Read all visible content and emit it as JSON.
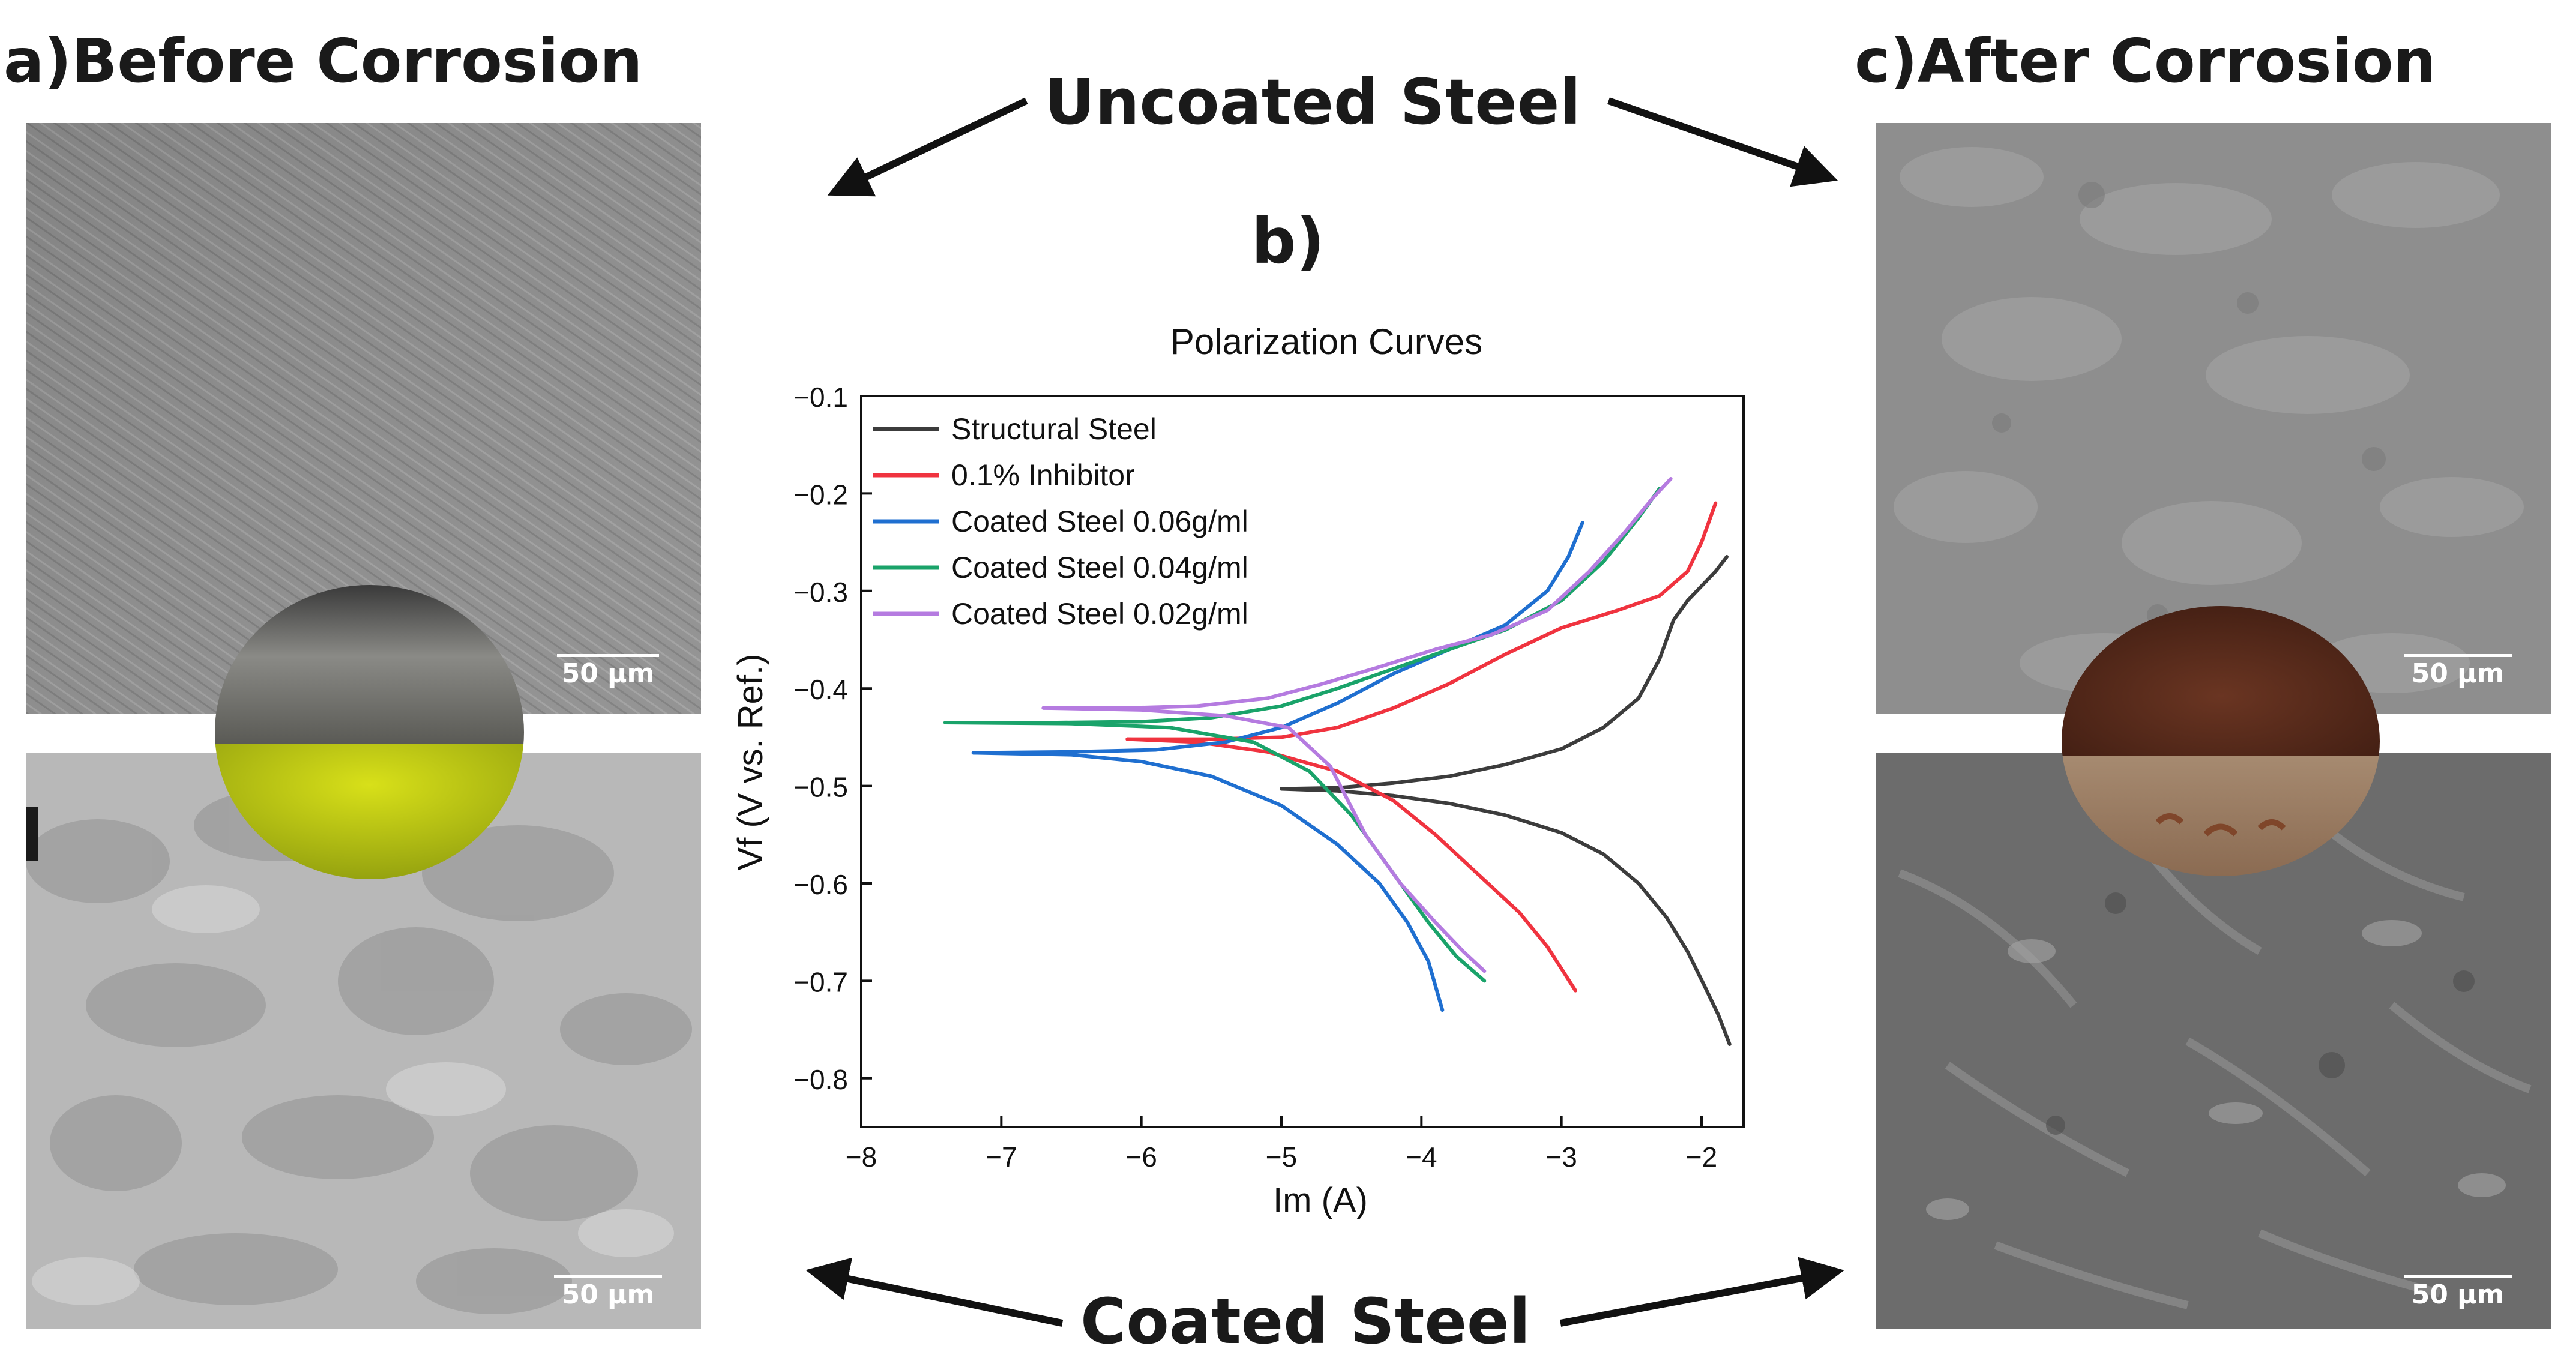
{
  "panels": {
    "a_label": "a)Before Corrosion",
    "b_label": "b)",
    "c_label": "c)After Corrosion"
  },
  "labels": {
    "uncoated": "Uncoated Steel",
    "coated": "Coated Steel"
  },
  "scale_bars": {
    "a_top": "50 µm",
    "a_bottom": "50 µm",
    "c_top": "50 µm",
    "c_bottom": "50 µm"
  },
  "colors": {
    "structural_steel": "#3c3c3c",
    "inhibitor": "#f0333f",
    "coated_006": "#1f6fd0",
    "coated_004": "#1aa36a",
    "coated_002": "#b57be0"
  },
  "chart_data": {
    "type": "line",
    "title": "Polarization Curves",
    "xlabel": "Im (A)",
    "ylabel": "Vf (V vs. Ref.)",
    "xlim": [
      -8,
      -1.7
    ],
    "ylim": [
      -0.85,
      -0.1
    ],
    "xticks": [
      "−8",
      "−7",
      "−6",
      "−5",
      "−4",
      "−3",
      "−2"
    ],
    "xtick_values": [
      -8,
      -7,
      -6,
      -5,
      -4,
      -3,
      -2
    ],
    "yticks": [
      "−0.1",
      "−0.2",
      "−0.3",
      "−0.4",
      "−0.5",
      "−0.6",
      "−0.7",
      "−0.8"
    ],
    "ytick_values": [
      -0.1,
      -0.2,
      -0.3,
      -0.4,
      -0.5,
      -0.6,
      -0.7,
      -0.8
    ],
    "legend_position": "top-left",
    "series": [
      {
        "name": "Structural Steel",
        "color": "#3c3c3c",
        "anodic": [
          [
            -5.0,
            -0.503
          ],
          [
            -4.6,
            -0.502
          ],
          [
            -4.2,
            -0.497
          ],
          [
            -3.8,
            -0.49
          ],
          [
            -3.4,
            -0.478
          ],
          [
            -3.0,
            -0.462
          ],
          [
            -2.7,
            -0.44
          ],
          [
            -2.45,
            -0.41
          ],
          [
            -2.3,
            -0.37
          ],
          [
            -2.2,
            -0.33
          ],
          [
            -2.1,
            -0.31
          ],
          [
            -2.0,
            -0.295
          ],
          [
            -1.9,
            -0.28
          ],
          [
            -1.82,
            -0.265
          ]
        ],
        "cathodic": [
          [
            -5.0,
            -0.503
          ],
          [
            -4.6,
            -0.505
          ],
          [
            -4.2,
            -0.51
          ],
          [
            -3.8,
            -0.518
          ],
          [
            -3.4,
            -0.53
          ],
          [
            -3.0,
            -0.548
          ],
          [
            -2.7,
            -0.57
          ],
          [
            -2.45,
            -0.6
          ],
          [
            -2.25,
            -0.635
          ],
          [
            -2.1,
            -0.67
          ],
          [
            -1.98,
            -0.705
          ],
          [
            -1.88,
            -0.735
          ],
          [
            -1.8,
            -0.765
          ]
        ]
      },
      {
        "name": "0.1% Inhibitor",
        "color": "#f0333f",
        "anodic": [
          [
            -6.1,
            -0.452
          ],
          [
            -5.5,
            -0.452
          ],
          [
            -5.0,
            -0.45
          ],
          [
            -4.6,
            -0.44
          ],
          [
            -4.2,
            -0.42
          ],
          [
            -3.8,
            -0.395
          ],
          [
            -3.4,
            -0.365
          ],
          [
            -3.0,
            -0.338
          ],
          [
            -2.6,
            -0.32
          ],
          [
            -2.3,
            -0.305
          ],
          [
            -2.1,
            -0.28
          ],
          [
            -2.0,
            -0.25
          ],
          [
            -1.9,
            -0.21
          ]
        ],
        "cathodic": [
          [
            -6.1,
            -0.452
          ],
          [
            -5.6,
            -0.455
          ],
          [
            -5.1,
            -0.465
          ],
          [
            -4.6,
            -0.485
          ],
          [
            -4.2,
            -0.515
          ],
          [
            -3.9,
            -0.55
          ],
          [
            -3.6,
            -0.59
          ],
          [
            -3.3,
            -0.63
          ],
          [
            -3.1,
            -0.665
          ],
          [
            -2.9,
            -0.71
          ]
        ]
      },
      {
        "name": "Coated Steel 0.06g/ml",
        "color": "#1f6fd0",
        "anodic": [
          [
            -7.2,
            -0.466
          ],
          [
            -6.5,
            -0.465
          ],
          [
            -5.9,
            -0.463
          ],
          [
            -5.4,
            -0.455
          ],
          [
            -5.0,
            -0.44
          ],
          [
            -4.6,
            -0.415
          ],
          [
            -4.2,
            -0.385
          ],
          [
            -3.8,
            -0.36
          ],
          [
            -3.4,
            -0.335
          ],
          [
            -3.1,
            -0.3
          ],
          [
            -2.95,
            -0.265
          ],
          [
            -2.85,
            -0.23
          ]
        ],
        "cathodic": [
          [
            -7.2,
            -0.466
          ],
          [
            -6.5,
            -0.468
          ],
          [
            -6.0,
            -0.475
          ],
          [
            -5.5,
            -0.49
          ],
          [
            -5.0,
            -0.52
          ],
          [
            -4.6,
            -0.56
          ],
          [
            -4.3,
            -0.6
          ],
          [
            -4.1,
            -0.64
          ],
          [
            -3.95,
            -0.68
          ],
          [
            -3.85,
            -0.73
          ]
        ]
      },
      {
        "name": "Coated Steel 0.04g/ml",
        "color": "#1aa36a",
        "anodic": [
          [
            -7.4,
            -0.435
          ],
          [
            -6.6,
            -0.435
          ],
          [
            -6.0,
            -0.434
          ],
          [
            -5.5,
            -0.43
          ],
          [
            -5.0,
            -0.418
          ],
          [
            -4.6,
            -0.4
          ],
          [
            -4.2,
            -0.38
          ],
          [
            -3.8,
            -0.36
          ],
          [
            -3.4,
            -0.34
          ],
          [
            -3.0,
            -0.31
          ],
          [
            -2.7,
            -0.27
          ],
          [
            -2.45,
            -0.225
          ],
          [
            -2.3,
            -0.195
          ]
        ],
        "cathodic": [
          [
            -7.4,
            -0.435
          ],
          [
            -6.5,
            -0.436
          ],
          [
            -5.8,
            -0.44
          ],
          [
            -5.2,
            -0.455
          ],
          [
            -4.8,
            -0.485
          ],
          [
            -4.5,
            -0.53
          ],
          [
            -4.2,
            -0.59
          ],
          [
            -3.95,
            -0.64
          ],
          [
            -3.75,
            -0.675
          ],
          [
            -3.55,
            -0.7
          ]
        ]
      },
      {
        "name": "Coated Steel 0.02g/ml",
        "color": "#b57be0",
        "anodic": [
          [
            -6.7,
            -0.42
          ],
          [
            -6.1,
            -0.42
          ],
          [
            -5.6,
            -0.418
          ],
          [
            -5.1,
            -0.41
          ],
          [
            -4.7,
            -0.395
          ],
          [
            -4.3,
            -0.378
          ],
          [
            -3.9,
            -0.36
          ],
          [
            -3.5,
            -0.345
          ],
          [
            -3.1,
            -0.32
          ],
          [
            -2.8,
            -0.28
          ],
          [
            -2.55,
            -0.24
          ],
          [
            -2.35,
            -0.205
          ],
          [
            -2.22,
            -0.185
          ]
        ],
        "cathodic": [
          [
            -6.7,
            -0.42
          ],
          [
            -6.0,
            -0.422
          ],
          [
            -5.4,
            -0.428
          ],
          [
            -4.95,
            -0.44
          ],
          [
            -4.65,
            -0.48
          ],
          [
            -4.4,
            -0.55
          ],
          [
            -4.15,
            -0.6
          ],
          [
            -3.9,
            -0.64
          ],
          [
            -3.7,
            -0.67
          ],
          [
            -3.55,
            -0.69
          ]
        ]
      }
    ]
  }
}
